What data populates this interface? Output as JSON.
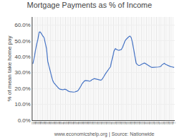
{
  "chart_data": {
    "type": "line",
    "title": "Mortgage Payments as % of Income",
    "ylabel": "% of mean take home pay",
    "annotations": [
      "www.economicshelp.org | Source: Nationwide"
    ],
    "color": "#4472C4",
    "grid": true,
    "ylim": [
      0.0,
      0.65
    ],
    "yticks": [
      {
        "value": 0.0,
        "label": "0.0%"
      },
      {
        "value": 0.1,
        "label": "10.0%"
      },
      {
        "value": 0.2,
        "label": "20.0%"
      },
      {
        "value": 0.3,
        "label": "30.0%"
      },
      {
        "value": 0.4,
        "label": "40.0%"
      },
      {
        "value": 0.5,
        "label": "50.0%"
      },
      {
        "value": 0.6,
        "label": "60.0%"
      }
    ],
    "categories": [
      "1988\nQ1",
      "1988\nQ2",
      "1988\nQ3",
      "1988\nQ4",
      "1989\nQ1",
      "1989\nQ2",
      "1989\nQ3",
      "1989\nQ4",
      "1990\nQ1",
      "1990\nQ2",
      "1990\nQ3",
      "1990\nQ4",
      "1991\nQ1",
      "1991\nQ2",
      "1991\nQ3",
      "1991\nQ4",
      "1992\nQ1",
      "1992\nQ2",
      "1992\nQ3",
      "1992\nQ4",
      "1993\nQ1",
      "1993\nQ2",
      "1993\nQ3",
      "1993\nQ4",
      "1994\nQ1",
      "1994\nQ2",
      "1994\nQ3",
      "1994\nQ4",
      "1995\nQ1",
      "1995\nQ2",
      "1995\nQ3",
      "1995\nQ4",
      "1996\nQ1",
      "1996\nQ2",
      "1996\nQ3",
      "1996\nQ4",
      "1997\nQ1",
      "1997\nQ2",
      "1997\nQ3",
      "1997\nQ4",
      "1998\nQ1",
      "1998\nQ2",
      "1998\nQ3",
      "1998\nQ4",
      "1999\nQ1",
      "1999\nQ2",
      "1999\nQ3",
      "1999\nQ4",
      "2000\nQ1",
      "2000\nQ2",
      "2000\nQ3",
      "2000\nQ4",
      "2001\nQ1",
      "2001\nQ2",
      "2001\nQ3",
      "2001\nQ4",
      "2002\nQ1",
      "2002\nQ2",
      "2002\nQ3",
      "2002\nQ4",
      "2003\nQ1",
      "2003\nQ2",
      "2003\nQ3",
      "2003\nQ4",
      "2004\nQ1",
      "2004\nQ2",
      "2004\nQ3",
      "2004\nQ4",
      "2005\nQ1",
      "2005\nQ2",
      "2005\nQ3",
      "2005\nQ4",
      "2006\nQ1",
      "2006\nQ2",
      "2006\nQ3",
      "2006\nQ4",
      "2007\nQ1",
      "2007\nQ2",
      "2007\nQ3",
      "2007\nQ4",
      "2008\nQ1",
      "2008\nQ2",
      "2008\nQ3",
      "2008\nQ4",
      "2009\nQ1",
      "2009\nQ2",
      "2009\nQ3",
      "2009\nQ4",
      "2010\nQ1",
      "2010\nQ2",
      "2010\nQ3",
      "2010\nQ4",
      "2011\nQ1",
      "2011\nQ2",
      "2011\nQ3",
      "2011\nQ4",
      "2012\nQ1",
      "2012\nQ2",
      "2012\nQ3",
      "2012\nQ4",
      "2013\nQ1",
      "2013\nQ2",
      "2013\nQ3",
      "2013\nQ4",
      "2014\nQ1",
      "2014\nQ2",
      "2014\nQ3",
      "2014\nQ4",
      "2015\nQ1",
      "2015\nQ2",
      "2015\nQ3",
      "2015\nQ4",
      "2016\nQ1",
      "2016\nQ2",
      "2016\nQ3",
      "2016\nQ4"
    ],
    "values": [
      0.355,
      0.4,
      0.44,
      0.48,
      0.51,
      0.555,
      0.555,
      0.54,
      0.53,
      0.52,
      0.48,
      0.45,
      0.37,
      0.34,
      0.31,
      0.27,
      0.25,
      0.235,
      0.225,
      0.215,
      0.205,
      0.2,
      0.195,
      0.193,
      0.192,
      0.193,
      0.195,
      0.192,
      0.185,
      0.182,
      0.18,
      0.178,
      0.177,
      0.177,
      0.178,
      0.18,
      0.183,
      0.19,
      0.2,
      0.215,
      0.23,
      0.24,
      0.248,
      0.25,
      0.25,
      0.248,
      0.245,
      0.248,
      0.255,
      0.26,
      0.262,
      0.26,
      0.258,
      0.255,
      0.253,
      0.252,
      0.255,
      0.265,
      0.278,
      0.292,
      0.305,
      0.315,
      0.325,
      0.335,
      0.37,
      0.405,
      0.435,
      0.45,
      0.445,
      0.442,
      0.44,
      0.442,
      0.445,
      0.46,
      0.48,
      0.5,
      0.51,
      0.52,
      0.525,
      0.53,
      0.52,
      0.49,
      0.44,
      0.39,
      0.36,
      0.35,
      0.345,
      0.345,
      0.35,
      0.355,
      0.358,
      0.36,
      0.355,
      0.348,
      0.342,
      0.338,
      0.335,
      0.332,
      0.332,
      0.333,
      0.332,
      0.333,
      0.335,
      0.336,
      0.338,
      0.348,
      0.355,
      0.358,
      0.352,
      0.348,
      0.343,
      0.34,
      0.338,
      0.336,
      0.334,
      0.332
    ]
  }
}
